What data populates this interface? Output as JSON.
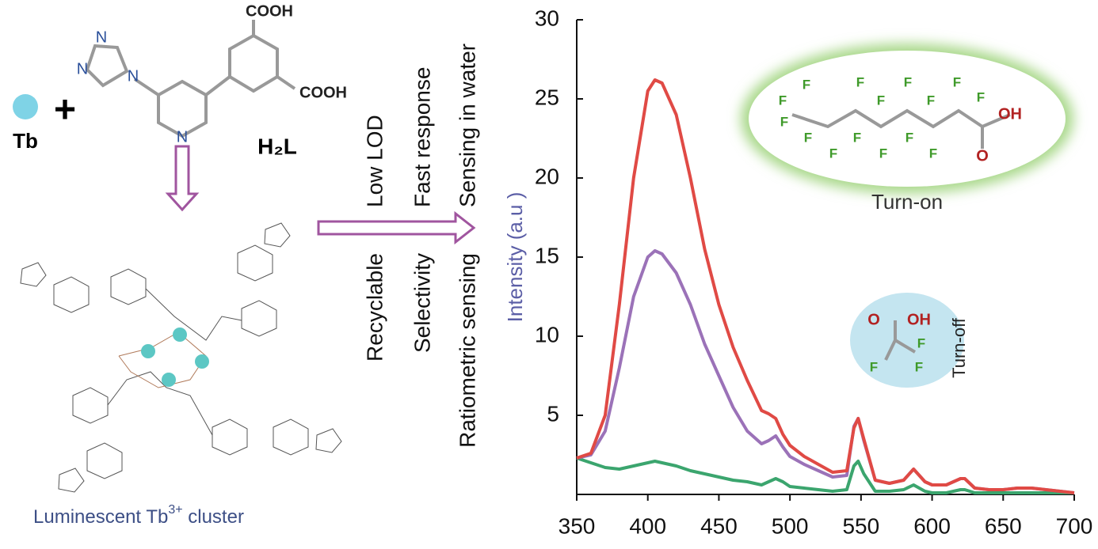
{
  "chart_data": {
    "type": "line",
    "ylabel": "Intensity (a.u )",
    "x": [
      350,
      360,
      370,
      380,
      390,
      400,
      405,
      410,
      420,
      430,
      440,
      450,
      460,
      470,
      480,
      485,
      490,
      495,
      500,
      510,
      520,
      530,
      540,
      545,
      548,
      552,
      560,
      570,
      580,
      587,
      595,
      600,
      610,
      620,
      623,
      630,
      640,
      650,
      660,
      670,
      680,
      690,
      700
    ],
    "series": [
      {
        "color": "#e04a45",
        "values": [
          2.3,
          2.6,
          5,
          12,
          20,
          25.5,
          26.2,
          26,
          24,
          20,
          15.5,
          12,
          9.3,
          7.2,
          5.3,
          5.1,
          4.8,
          3.8,
          3.1,
          2.4,
          1.9,
          1.4,
          1.5,
          4.2,
          4.8,
          3.5,
          0.9,
          0.7,
          0.9,
          1.6,
          0.8,
          0.6,
          0.6,
          1.0,
          1.0,
          0.4,
          0.3,
          0.3,
          0.4,
          0.4,
          0.3,
          0.2,
          0.1
        ]
      },
      {
        "color": "#9b72b8",
        "values": [
          2.3,
          2.5,
          4,
          8,
          12.5,
          15,
          15.4,
          15.2,
          14,
          12,
          9.5,
          7.5,
          5.5,
          4,
          3.2,
          3.4,
          3.7,
          3,
          2.4,
          1.9,
          1.5,
          1.1,
          1.2,
          4.3,
          4.8,
          3.4,
          0.9,
          0.7,
          0.9,
          1.6,
          0.8,
          0.6,
          0.6,
          1.0,
          1.0,
          0.4,
          0.3,
          0.3,
          0.4,
          0.4,
          0.3,
          0.2,
          0.1
        ]
      },
      {
        "color": "#3ba56e",
        "values": [
          2.3,
          2.0,
          1.7,
          1.6,
          1.8,
          2.0,
          2.1,
          2.0,
          1.8,
          1.5,
          1.3,
          1.1,
          0.9,
          0.8,
          0.6,
          0.8,
          1.0,
          0.8,
          0.5,
          0.4,
          0.3,
          0.2,
          0.3,
          1.8,
          2.1,
          1.3,
          0.2,
          0.2,
          0.3,
          0.6,
          0.2,
          0.1,
          0.1,
          0.3,
          0.3,
          0.1,
          0.1,
          0.1,
          0.1,
          0.1,
          0.1,
          0.1,
          0.1
        ]
      }
    ],
    "xlim": [
      350,
      700
    ],
    "xticks": [
      350,
      400,
      450,
      500,
      550,
      600,
      650,
      700
    ],
    "ylim": [
      0,
      30
    ],
    "yticks": [
      5,
      10,
      15,
      20,
      25,
      30
    ]
  },
  "scheme": {
    "tb": "Tb",
    "plus": "+",
    "cooh_top": "COOH",
    "cooh_right": "COOH",
    "ligand": "H₂L",
    "n_atoms": [
      "N",
      "N",
      "N",
      "N"
    ],
    "cluster_label": [
      "Luminescent Tb",
      "3+",
      " cluster"
    ],
    "features_top": [
      "Low LOD",
      "Fast response",
      "Sensing in water"
    ],
    "features_bottom": [
      "Recyclable",
      "Selectivity",
      "Ratiometric sensing"
    ],
    "turn_on": "Turn-on",
    "turn_off": "Turn-off",
    "pfoa_atoms": [
      "F",
      "F",
      "F",
      "F",
      "F",
      "F",
      "F",
      "F",
      "F",
      "F",
      "F",
      "F",
      "F",
      "F",
      "F",
      "O",
      "OH"
    ],
    "tfa_atoms": [
      "O",
      "OH",
      "F",
      "F",
      "F"
    ]
  }
}
